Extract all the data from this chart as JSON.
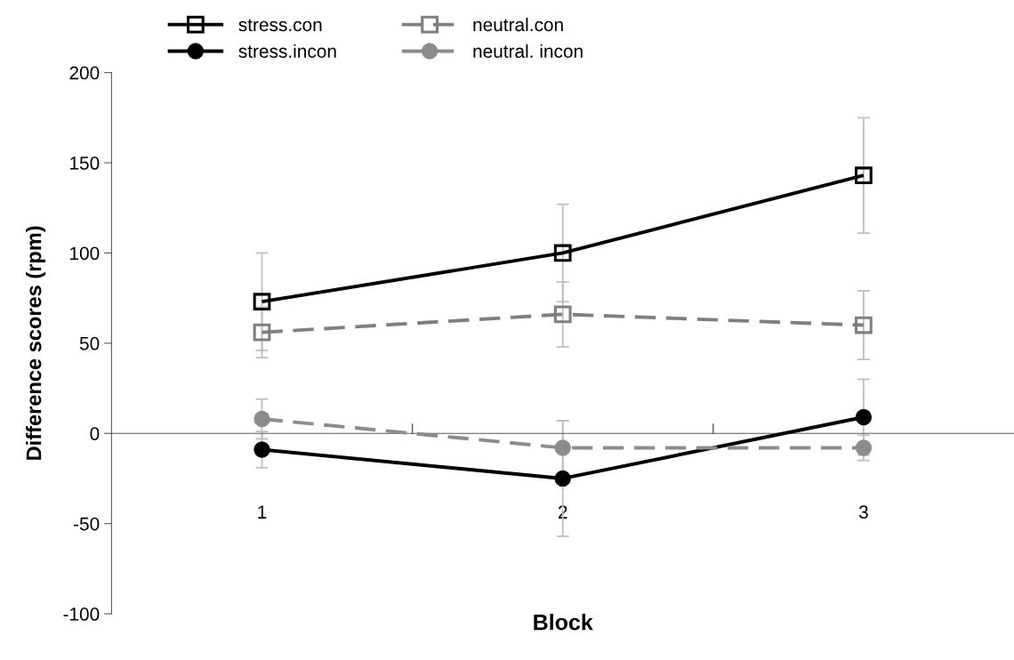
{
  "chart_data": {
    "type": "line",
    "xlabel": "Block",
    "ylabel": "Difference scores (rpm)",
    "categories": [
      "1",
      "2",
      "3"
    ],
    "ylim": [
      -100,
      200
    ],
    "yticks": [
      -100,
      -50,
      0,
      50,
      100,
      150,
      200
    ],
    "legend": "top",
    "series": [
      {
        "name": "stress.con",
        "color": "#000000",
        "marker": "square",
        "line_style": "solid",
        "values": [
          73,
          100,
          143
        ],
        "errors": [
          27,
          27,
          32
        ]
      },
      {
        "name": "stress.incon",
        "color": "#000000",
        "marker": "circle",
        "line_style": "solid",
        "values": [
          -9,
          -25,
          9
        ],
        "errors": [
          10,
          32,
          21
        ]
      },
      {
        "name": "neutral.con",
        "color": "#7f7f7f",
        "marker": "square",
        "line_style": "dashed",
        "values": [
          56,
          66,
          60
        ],
        "errors": [
          14,
          18,
          19
        ]
      },
      {
        "name": "neutral. incon",
        "color": "#8c8c8c",
        "marker": "circle",
        "line_style": "dashed",
        "values": [
          8,
          -8,
          -8
        ],
        "errors": [
          11,
          15,
          7
        ]
      }
    ]
  }
}
